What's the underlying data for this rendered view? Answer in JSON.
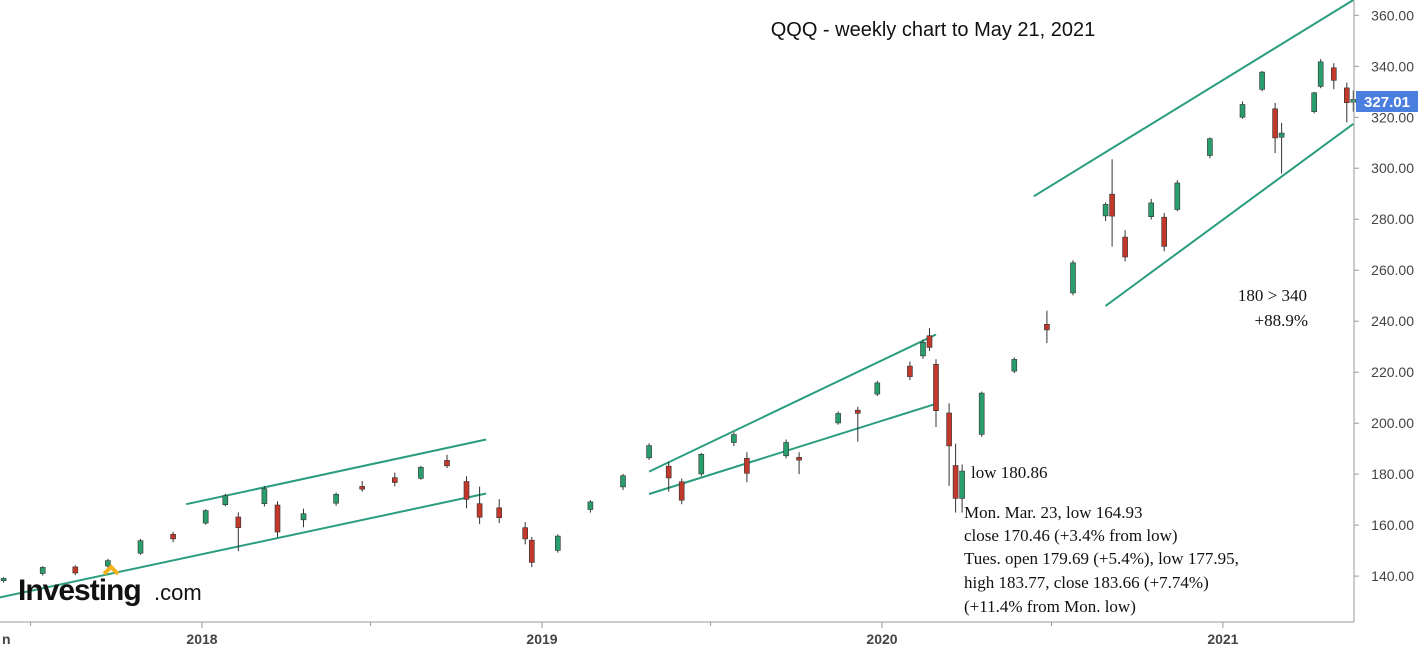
{
  "chart_data": {
    "type": "candlestick",
    "title": "QQQ - weekly chart to May 21, 2021",
    "ylim": [
      122,
      366
    ],
    "y_ticks": [
      "140.00",
      "160.00",
      "180.00",
      "200.00",
      "220.00",
      "240.00",
      "260.00",
      "280.00",
      "300.00",
      "320.00",
      "340.00",
      "360.00"
    ],
    "x_ticks": [
      "2018",
      "2019",
      "2020",
      "2021"
    ],
    "x_edge_label": "n",
    "last_price": "327.01",
    "grid": false,
    "colors": {
      "up": "#2a9d6c",
      "down": "#c0392b",
      "channel": "#2a9d7f",
      "badge": "#4a7fe0"
    },
    "series": [
      {
        "date": "2017-06-02",
        "o": 138.2,
        "h": 139.6,
        "l": 137.4,
        "c": 139.1
      },
      {
        "date": "2017-07-14",
        "o": 141.0,
        "h": 143.9,
        "l": 140.2,
        "c": 143.4
      },
      {
        "date": "2017-08-18",
        "o": 143.6,
        "h": 144.2,
        "l": 140.4,
        "c": 141.2
      },
      {
        "date": "2017-09-22",
        "o": 144.0,
        "h": 146.8,
        "l": 143.3,
        "c": 146.1
      },
      {
        "date": "2017-10-27",
        "o": 149.0,
        "h": 154.6,
        "l": 148.4,
        "c": 153.9
      },
      {
        "date": "2017-12-01",
        "o": 156.4,
        "h": 157.4,
        "l": 153.3,
        "c": 154.6
      },
      {
        "date": "2018-01-05",
        "o": 160.8,
        "h": 166.2,
        "l": 160.2,
        "c": 165.7
      },
      {
        "date": "2018-01-26",
        "o": 168.0,
        "h": 172.3,
        "l": 167.4,
        "c": 171.5
      },
      {
        "date": "2018-02-09",
        "o": 163.2,
        "h": 165.0,
        "l": 149.8,
        "c": 159.0
      },
      {
        "date": "2018-03-09",
        "o": 168.4,
        "h": 175.4,
        "l": 167.3,
        "c": 174.3
      },
      {
        "date": "2018-03-23",
        "o": 167.9,
        "h": 169.4,
        "l": 155.2,
        "c": 157.3
      },
      {
        "date": "2018-04-20",
        "o": 162.1,
        "h": 166.5,
        "l": 159.2,
        "c": 164.5
      },
      {
        "date": "2018-05-25",
        "o": 168.6,
        "h": 172.8,
        "l": 167.6,
        "c": 172.1
      },
      {
        "date": "2018-06-22",
        "o": 175.2,
        "h": 177.3,
        "l": 173.1,
        "c": 174.1
      },
      {
        "date": "2018-07-27",
        "o": 178.6,
        "h": 180.6,
        "l": 175.2,
        "c": 176.7
      },
      {
        "date": "2018-08-24",
        "o": 178.4,
        "h": 183.3,
        "l": 177.8,
        "c": 182.7
      },
      {
        "date": "2018-09-21",
        "o": 185.4,
        "h": 187.6,
        "l": 182.4,
        "c": 183.3
      },
      {
        "date": "2018-10-12",
        "o": 177.1,
        "h": 179.2,
        "l": 166.6,
        "c": 170.1
      },
      {
        "date": "2018-10-26",
        "o": 168.4,
        "h": 175.1,
        "l": 160.4,
        "c": 163.1
      },
      {
        "date": "2018-11-16",
        "o": 166.8,
        "h": 170.2,
        "l": 160.8,
        "c": 162.9
      },
      {
        "date": "2018-12-14",
        "o": 159.0,
        "h": 161.2,
        "l": 152.5,
        "c": 154.6
      },
      {
        "date": "2018-12-21",
        "o": 154.1,
        "h": 155.4,
        "l": 143.5,
        "c": 145.4
      },
      {
        "date": "2019-01-18",
        "o": 150.1,
        "h": 156.4,
        "l": 149.2,
        "c": 155.7
      },
      {
        "date": "2019-02-22",
        "o": 166.1,
        "h": 169.8,
        "l": 164.9,
        "c": 169.1
      },
      {
        "date": "2019-03-29",
        "o": 175.0,
        "h": 180.1,
        "l": 173.8,
        "c": 179.4
      },
      {
        "date": "2019-04-26",
        "o": 186.4,
        "h": 192.1,
        "l": 185.6,
        "c": 191.2
      },
      {
        "date": "2019-05-17",
        "o": 183.1,
        "h": 184.8,
        "l": 173.1,
        "c": 178.5
      },
      {
        "date": "2019-05-31",
        "o": 177.0,
        "h": 178.3,
        "l": 168.2,
        "c": 169.8
      },
      {
        "date": "2019-06-21",
        "o": 180.1,
        "h": 188.3,
        "l": 179.2,
        "c": 187.8
      },
      {
        "date": "2019-07-26",
        "o": 192.4,
        "h": 196.4,
        "l": 191.0,
        "c": 195.5
      },
      {
        "date": "2019-08-09",
        "o": 186.2,
        "h": 188.6,
        "l": 176.8,
        "c": 180.3
      },
      {
        "date": "2019-09-20",
        "o": 187.2,
        "h": 193.6,
        "l": 186.2,
        "c": 192.4
      },
      {
        "date": "2019-10-04",
        "o": 186.6,
        "h": 188.6,
        "l": 180.0,
        "c": 185.5
      },
      {
        "date": "2019-11-15",
        "o": 200.1,
        "h": 204.6,
        "l": 199.4,
        "c": 203.8
      },
      {
        "date": "2019-12-06",
        "o": 205.1,
        "h": 206.4,
        "l": 192.7,
        "c": 203.9
      },
      {
        "date": "2019-12-27",
        "o": 211.4,
        "h": 216.6,
        "l": 210.6,
        "c": 215.8
      },
      {
        "date": "2020-01-31",
        "o": 222.4,
        "h": 224.2,
        "l": 216.9,
        "c": 218.3
      },
      {
        "date": "2020-02-14",
        "o": 226.4,
        "h": 232.8,
        "l": 225.2,
        "c": 231.7
      },
      {
        "date": "2020-02-21",
        "o": 234.3,
        "h": 237.3,
        "l": 228.3,
        "c": 229.7
      },
      {
        "date": "2020-02-28",
        "o": 223.1,
        "h": 225.1,
        "l": 198.5,
        "c": 204.9
      },
      {
        "date": "2020-03-13",
        "o": 204.0,
        "h": 207.8,
        "l": 175.4,
        "c": 191.1
      },
      {
        "date": "2020-03-20",
        "o": 183.4,
        "h": 192.0,
        "l": 164.9,
        "c": 170.5
      },
      {
        "date": "2020-03-27",
        "o": 170.5,
        "h": 183.8,
        "l": 164.9,
        "c": 181.2
      },
      {
        "date": "2020-04-17",
        "o": 195.6,
        "h": 212.4,
        "l": 194.7,
        "c": 211.8
      },
      {
        "date": "2020-05-22",
        "o": 220.4,
        "h": 225.8,
        "l": 219.6,
        "c": 225.0
      },
      {
        "date": "2020-06-26",
        "o": 238.8,
        "h": 244.1,
        "l": 231.4,
        "c": 236.6
      },
      {
        "date": "2020-07-24",
        "o": 251.1,
        "h": 263.9,
        "l": 250.1,
        "c": 262.9
      },
      {
        "date": "2020-08-28",
        "o": 281.3,
        "h": 286.6,
        "l": 279.3,
        "c": 285.8
      },
      {
        "date": "2020-09-04",
        "o": 289.8,
        "h": 303.5,
        "l": 269.3,
        "c": 281.2
      },
      {
        "date": "2020-09-18",
        "o": 273.0,
        "h": 275.7,
        "l": 263.4,
        "c": 265.2
      },
      {
        "date": "2020-10-16",
        "o": 281.0,
        "h": 288.0,
        "l": 279.9,
        "c": 286.4
      },
      {
        "date": "2020-10-30",
        "o": 280.8,
        "h": 282.4,
        "l": 267.4,
        "c": 269.4
      },
      {
        "date": "2020-11-13",
        "o": 283.8,
        "h": 295.3,
        "l": 283.2,
        "c": 294.2
      },
      {
        "date": "2020-12-18",
        "o": 305.0,
        "h": 312.1,
        "l": 303.9,
        "c": 311.6
      },
      {
        "date": "2021-01-22",
        "o": 320.0,
        "h": 326.2,
        "l": 319.4,
        "c": 325.0
      },
      {
        "date": "2021-02-12",
        "o": 330.9,
        "h": 338.2,
        "l": 330.2,
        "c": 337.7
      },
      {
        "date": "2021-02-26",
        "o": 323.3,
        "h": 325.6,
        "l": 306.0,
        "c": 311.9
      },
      {
        "date": "2021-03-05",
        "o": 312.2,
        "h": 317.8,
        "l": 297.9,
        "c": 313.8
      },
      {
        "date": "2021-04-09",
        "o": 322.2,
        "h": 330.0,
        "l": 321.5,
        "c": 329.6
      },
      {
        "date": "2021-04-16",
        "o": 332.1,
        "h": 342.8,
        "l": 331.4,
        "c": 341.7
      },
      {
        "date": "2021-04-30",
        "o": 339.4,
        "h": 341.2,
        "l": 331.0,
        "c": 334.5
      },
      {
        "date": "2021-05-14",
        "o": 331.5,
        "h": 333.6,
        "l": 318.0,
        "c": 325.7
      },
      {
        "date": "2021-05-21",
        "o": 325.9,
        "h": 330.5,
        "l": 322.2,
        "c": 327.0
      }
    ],
    "trendlines": [
      {
        "from": [
          "2017-05-12",
          130.3
        ],
        "to": [
          "2018-11-02",
          172.4
        ]
      },
      {
        "from": [
          "2017-12-15",
          168.2
        ],
        "to": [
          "2018-11-02",
          193.6
        ]
      },
      {
        "from": [
          "2019-04-26",
          172.2
        ],
        "to": [
          "2020-02-28",
          207.6
        ]
      },
      {
        "from": [
          "2019-04-26",
          181.0
        ],
        "to": [
          "2020-02-28",
          234.8
        ]
      },
      {
        "from": [
          "2020-06-12",
          289.0
        ],
        "to": [
          "2021-05-21",
          366.0
        ]
      },
      {
        "from": [
          "2020-08-28",
          246.0
        ],
        "to": [
          "2021-05-21",
          317.4
        ]
      }
    ],
    "annotations": {
      "low_18086": "low 180.86",
      "mar_lines": [
        "Mon. Mar. 23, low 164.93",
        "close 170.46 (+3.4% from low)",
        "Tues. open 179.69 (+5.4%), low 177.95,",
        "high 183.77, close 183.66 (+7.74%)",
        "(+11.4% from Mon. low)"
      ],
      "range_line1": "180 > 340",
      "range_line2": "+88.9%"
    }
  },
  "watermark": {
    "brand": "Investing",
    "suffix": ".com"
  }
}
